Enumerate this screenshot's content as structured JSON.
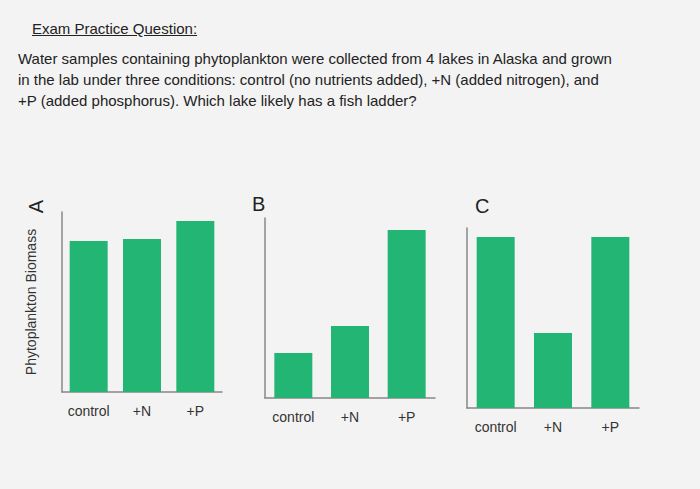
{
  "header": "Exam Practice Question:",
  "question_lines": [
    "Water samples containing phytoplankton were collected from 4 lakes in Alaska and grown",
    "in the lab under three conditions: control (no nutrients added), +N (added nitrogen), and",
    "+P (added phosphorus). Which lake likely has a fish ladder?"
  ],
  "chart_data": [
    {
      "type": "bar",
      "title": "A",
      "ylabel": "Phytoplankton Biomass",
      "categories": [
        "control",
        "+N",
        "+P"
      ],
      "values": [
        151,
        153,
        171
      ],
      "color": "#22b573",
      "ylim": [
        0,
        180
      ],
      "tick_labels": "x"
    },
    {
      "type": "bar",
      "title": "B",
      "categories": [
        "control",
        "+N",
        "+P"
      ],
      "values": [
        45,
        72,
        168
      ],
      "color": "#22b573",
      "ylim": [
        0,
        180
      ],
      "tick_labels": "x"
    },
    {
      "type": "bar",
      "title": "C",
      "categories": [
        "control",
        "+N",
        "+P"
      ],
      "values": [
        171,
        75,
        171
      ],
      "color": "#22b573",
      "ylim": [
        0,
        180
      ],
      "tick_labels": "x"
    }
  ]
}
